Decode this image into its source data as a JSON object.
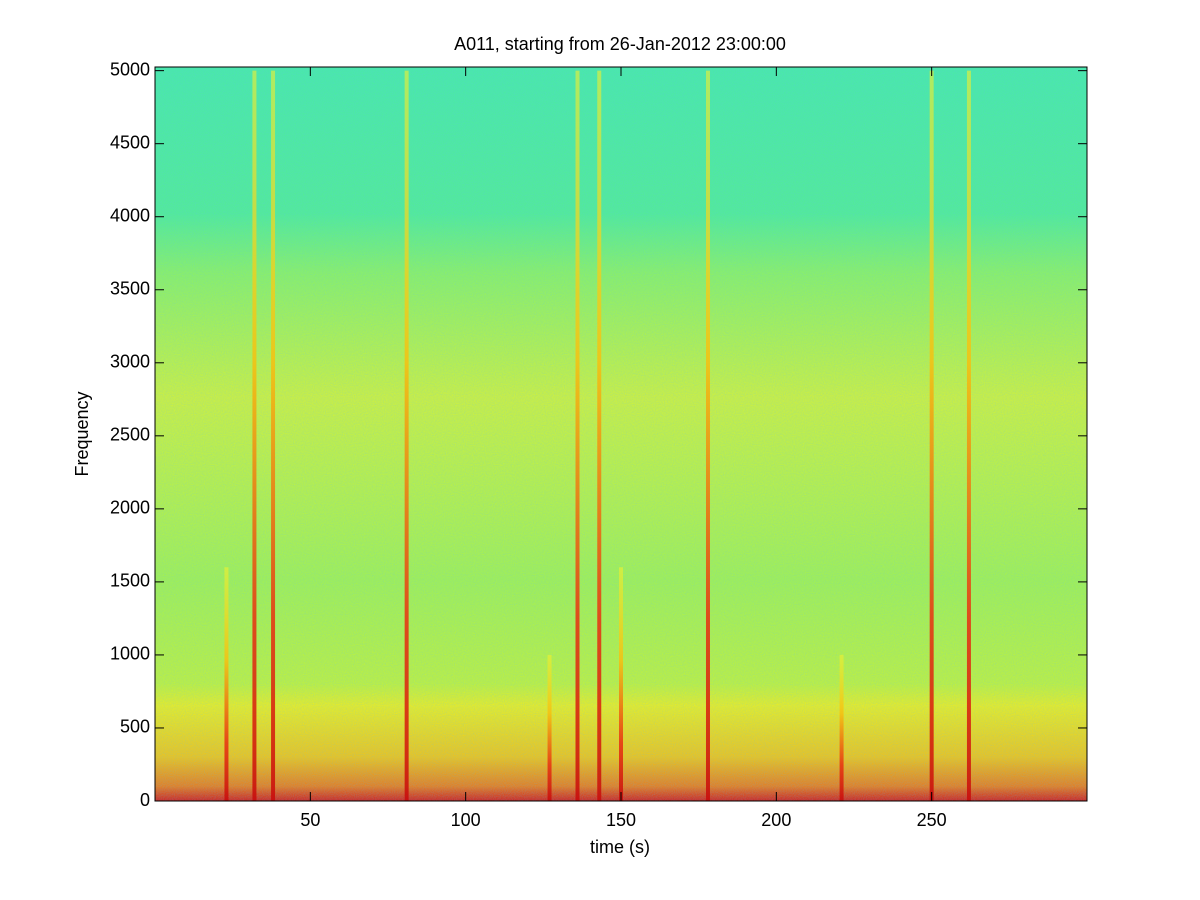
{
  "chart_data": {
    "type": "spectrogram",
    "title": "A011, starting from 26-Jan-2012 23:00:00",
    "x_label": "time (s)",
    "y_label": "Frequency",
    "x": [
      23,
      32,
      38,
      81,
      127,
      136,
      143,
      150,
      178,
      221,
      250,
      262
    ],
    "values": [
      1600,
      5000,
      5000,
      5000,
      1000,
      5000,
      5000,
      1600,
      5000,
      1000,
      5000,
      5000
    ],
    "xlim": [
      0,
      300
    ],
    "ylim": [
      0,
      5025
    ],
    "xticks": [
      50,
      100,
      150,
      200,
      250
    ],
    "yticks": [
      0,
      500,
      1000,
      1500,
      2000,
      2500,
      3000,
      3500,
      4000,
      4500,
      5000
    ]
  }
}
